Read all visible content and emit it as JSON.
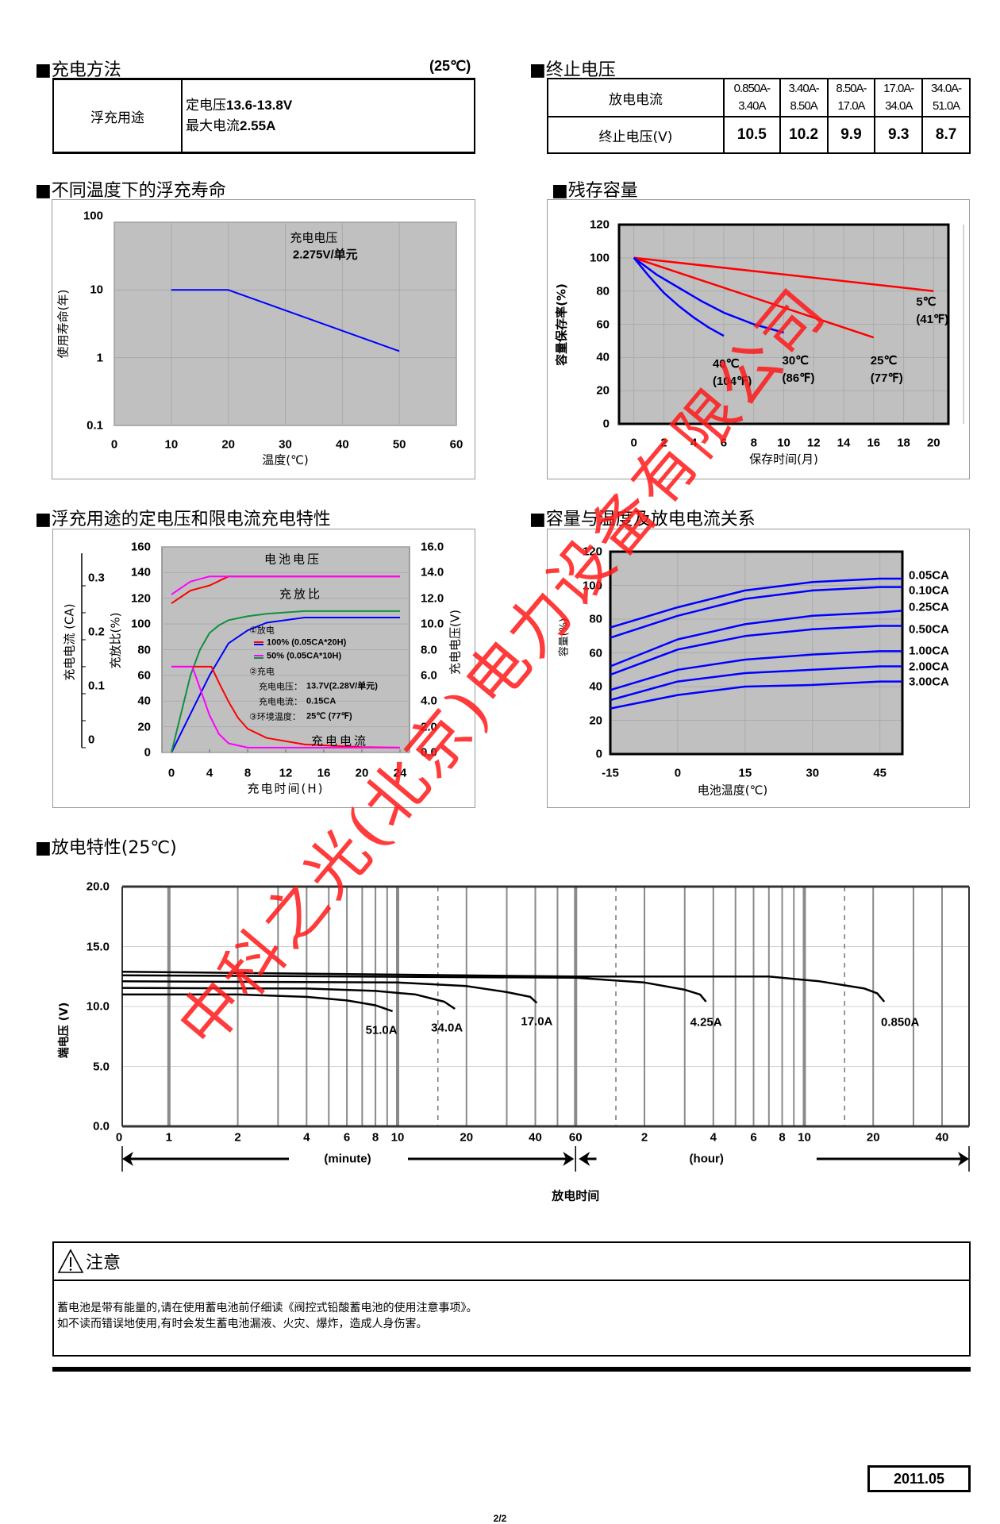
{
  "charge_method": {
    "title": "■充电方法",
    "temp": "(25℃)",
    "use": "浮充用途",
    "lines": [
      {
        "label": "定电压",
        "value": "13.6-13.8V"
      },
      {
        "label": "最大电流",
        "value": "2.55A"
      }
    ]
  },
  "end_voltage": {
    "title": "■终止电压",
    "row1_label": "放电电流",
    "currents": [
      [
        "0.850A-",
        "3.40A"
      ],
      [
        "3.40A-",
        "8.50A"
      ],
      [
        "8.50A-",
        "17.0A"
      ],
      [
        "17.0A-",
        "34.0A"
      ],
      [
        "34.0A-",
        "51.0A"
      ]
    ],
    "row2_label": "终止电压(V)",
    "voltages": [
      "10.5",
      "10.2",
      "9.9",
      "9.3",
      "8.7"
    ]
  },
  "chart_data": [
    {
      "type": "line",
      "title": "■不同温度下的浮充寿命",
      "xlabel": "温度(℃)",
      "ylabel": "使用寿命(年)",
      "xlim": [
        0,
        60
      ],
      "ylim": [
        0.1,
        100
      ],
      "yscale": "log",
      "xticks": [
        "0",
        "10",
        "20",
        "30",
        "40",
        "50",
        "60"
      ],
      "yticks": [
        "100",
        "10",
        "1",
        "0.1"
      ],
      "grid": true,
      "annotation": [
        "充电电压",
        "2.275V/单元"
      ],
      "series": [
        {
          "color": "#0000ff",
          "points": [
            [
              10,
              10
            ],
            [
              20,
              10
            ],
            [
              50,
              1.25
            ]
          ]
        }
      ]
    },
    {
      "type": "line",
      "title": "■残存容量",
      "xlabel": "保存时间(月)",
      "ylabel": "容量保存率(%)",
      "xlim": [
        0,
        22
      ],
      "ylim": [
        0,
        120
      ],
      "xticks": [
        "0",
        "2",
        "4",
        "6",
        "8",
        "10",
        "12",
        "14",
        "16",
        "18",
        "20"
      ],
      "yticks": [
        "0",
        "20",
        "40",
        "60",
        "80",
        "100",
        "120"
      ],
      "grid": true,
      "series": [
        {
          "name": "5℃",
          "name2": "(41℉)",
          "color": "#ff0000",
          "points": [
            [
              0,
              100
            ],
            [
              20,
              80
            ]
          ]
        },
        {
          "name": "25℃",
          "name2": "(77℉)",
          "color": "#ff0000",
          "points": [
            [
              0,
              100
            ],
            [
              4,
              88
            ],
            [
              8,
              76
            ],
            [
              12,
              64
            ],
            [
              16,
              52
            ]
          ]
        },
        {
          "name": "30℃",
          "name2": "(86℉)",
          "color": "#0000ff",
          "points": [
            [
              0,
              100
            ],
            [
              1.5,
              90
            ],
            [
              3,
              82
            ],
            [
              4.5,
              74
            ],
            [
              6,
              67
            ],
            [
              8,
              60
            ],
            [
              10,
              55
            ]
          ]
        },
        {
          "name": "40℃",
          "name2": "(104℉)",
          "color": "#0000ff",
          "points": [
            [
              0,
              100
            ],
            [
              1,
              89
            ],
            [
              2,
              79
            ],
            [
              3,
              71
            ],
            [
              4,
              64
            ],
            [
              5,
              58
            ],
            [
              6,
              53
            ]
          ]
        }
      ]
    },
    {
      "type": "line",
      "title": "■浮充用途的定电压和限电流充电特性",
      "xlabel": "充电时间(H)",
      "xlim": [
        -1,
        25
      ],
      "xticks": [
        "0",
        "4",
        "8",
        "12",
        "16",
        "20",
        "24"
      ],
      "y_left_label": "充放比(%)",
      "y_left_lim": [
        0,
        160
      ],
      "y_left_ticks": [
        "0",
        "20",
        "40",
        "60",
        "80",
        "100",
        "120",
        "140",
        "160"
      ],
      "y_right_label": "充电电压(V)",
      "y_right_lim": [
        0,
        16
      ],
      "y_right_ticks": [
        "0.0",
        "2.0",
        "4.0",
        "6.0",
        "8.0",
        "10.0",
        "12.0",
        "14.0",
        "16.0"
      ],
      "y_far_left_label": "充电电流 (CA)",
      "y_far_left_ticks": [
        "0",
        "0.1",
        "0.2",
        "0.3"
      ],
      "annotations": {
        "battery_voltage": "电池电压",
        "charge_ratio": "充放比",
        "charge_current": "充电电流"
      },
      "legend": {
        "discharge": "①放电",
        "d100": "100% (0.05CA*20H)",
        "d50": "50% (0.05CA*10H)",
        "charge": "②充电",
        "cv_label": "充电电压：",
        "cv_value": "13.7V(2.28V/单元)",
        "cc_label": "充电电流：",
        "cc_value": "0.15CA",
        "amb_label": "③环境温度：",
        "amb_value": "25℃ (77℉)"
      },
      "series": [
        {
          "name": "100% (0.05CA*20H)",
          "quantity": "voltage_V",
          "color": "#ff0000",
          "points": [
            [
              0,
              11.6
            ],
            [
              2,
              12.6
            ],
            [
              4,
              13.0
            ],
            [
              6,
              13.7
            ],
            [
              24,
              13.7
            ]
          ]
        },
        {
          "name": "50% (0.05CA*10H)",
          "quantity": "voltage_V",
          "color": "#ff00ff",
          "points": [
            [
              0,
              12.3
            ],
            [
              2,
              13.3
            ],
            [
              4,
              13.7
            ],
            [
              24,
              13.7
            ]
          ]
        },
        {
          "name": "100% (0.05CA*20H)",
          "quantity": "charge_ratio_pct",
          "color": "#0000ff",
          "points": [
            [
              0,
              0
            ],
            [
              2,
              30
            ],
            [
              4,
              60
            ],
            [
              6,
              85
            ],
            [
              8,
              95
            ],
            [
              10,
              101
            ],
            [
              14,
              105
            ],
            [
              24,
              105
            ]
          ]
        },
        {
          "name": "50% (0.05CA*10H)",
          "quantity": "charge_ratio_pct",
          "color": "#109040",
          "points": [
            [
              0,
              0
            ],
            [
              1,
              30
            ],
            [
              2,
              60
            ],
            [
              3,
              80
            ],
            [
              4,
              93
            ],
            [
              5,
              99
            ],
            [
              6,
              103
            ],
            [
              8,
              106
            ],
            [
              10,
              108
            ],
            [
              14,
              110
            ],
            [
              24,
              110
            ]
          ]
        },
        {
          "name": "100% (0.05CA*20H)",
          "quantity": "current_CA",
          "color": "#ff0000",
          "points": [
            [
              0,
              0.15
            ],
            [
              4.2,
              0.15
            ],
            [
              5,
              0.12
            ],
            [
              6,
              0.085
            ],
            [
              7,
              0.055
            ],
            [
              8,
              0.035
            ],
            [
              10,
              0.018
            ],
            [
              14,
              0.006
            ],
            [
              20,
              0.001
            ],
            [
              24,
              0
            ]
          ]
        },
        {
          "name": "50% (0.05CA*10H)",
          "quantity": "current_CA",
          "color": "#ff00ff",
          "points": [
            [
              0,
              0.15
            ],
            [
              2.2,
              0.15
            ],
            [
              3,
              0.11
            ],
            [
              4,
              0.06
            ],
            [
              5,
              0.025
            ],
            [
              6,
              0.008
            ],
            [
              8,
              0
            ],
            [
              24,
              0
            ]
          ]
        }
      ]
    },
    {
      "type": "line",
      "title": "■容量与温度及放电电流关系",
      "xlabel": "电池温度(℃)",
      "ylabel": "容量(%)",
      "xlim": [
        -15,
        50
      ],
      "ylim": [
        0,
        120
      ],
      "xticks": [
        "-15",
        "0",
        "15",
        "30",
        "45"
      ],
      "yticks": [
        "0",
        "20",
        "40",
        "60",
        "80",
        "100",
        "120"
      ],
      "grid": true,
      "x": [
        -15,
        0,
        15,
        30,
        45,
        50
      ],
      "series": [
        {
          "name": "0.05CA",
          "color": "#0000ff",
          "values": [
            75,
            87,
            97,
            102,
            104,
            104
          ]
        },
        {
          "name": "0.10CA",
          "color": "#0000ff",
          "values": [
            69,
            82,
            92,
            97,
            99,
            99
          ]
        },
        {
          "name": "0.25CA",
          "color": "#0000ff",
          "values": [
            52,
            68,
            77,
            82,
            84,
            85
          ]
        },
        {
          "name": "0.50CA",
          "color": "#0000ff",
          "values": [
            47,
            62,
            70,
            74,
            76,
            76
          ]
        },
        {
          "name": "1.00CA",
          "color": "#0000ff",
          "values": [
            38,
            50,
            56,
            59,
            61,
            61
          ]
        },
        {
          "name": "2.00CA",
          "color": "#0000ff",
          "values": [
            32,
            43,
            48,
            50,
            52,
            52
          ]
        },
        {
          "name": "3.00CA",
          "color": "#0000ff",
          "values": [
            27,
            35,
            40,
            41,
            43,
            43
          ]
        }
      ]
    },
    {
      "type": "line",
      "title": "■放电特性(25℃)",
      "xlabel": "放电时间",
      "ylabel": "端电压 (V)",
      "xscale": "log",
      "x_unit": "minutes",
      "xlim": [
        0.625,
        3150
      ],
      "ylim": [
        0,
        20
      ],
      "yticks": [
        "0.0",
        "5.0",
        "10.0",
        "15.0",
        "20.0"
      ],
      "xticks": [
        {
          "label": "0",
          "minutes": 0.625
        },
        {
          "label": "1",
          "minutes": 1
        },
        {
          "label": "2",
          "minutes": 2
        },
        {
          "label": "4",
          "minutes": 4
        },
        {
          "label": "6",
          "minutes": 6
        },
        {
          "label": "8",
          "minutes": 8
        },
        {
          "label": "10",
          "minutes": 10
        },
        {
          "label": "20",
          "minutes": 20
        },
        {
          "label": "40",
          "minutes": 40
        },
        {
          "label": "60",
          "minutes": 60
        },
        {
          "label": "2",
          "minutes": 120
        },
        {
          "label": "4",
          "minutes": 240
        },
        {
          "label": "6",
          "minutes": 360
        },
        {
          "label": "8",
          "minutes": 480
        },
        {
          "label": "10",
          "minutes": 600
        },
        {
          "label": "20",
          "minutes": 1200
        },
        {
          "label": "40",
          "minutes": 2400
        }
      ],
      "unit_minute": "(minute)",
      "unit_hour": "(hour)",
      "grid": true,
      "series": [
        {
          "name": "51.0A",
          "color": "#000000",
          "points": [
            [
              0.625,
              11.0
            ],
            [
              2,
              11.0
            ],
            [
              4,
              10.8
            ],
            [
              6,
              10.5
            ],
            [
              8,
              10.1
            ],
            [
              9.5,
              9.6
            ]
          ]
        },
        {
          "name": "34.0A",
          "color": "#000000",
          "points": [
            [
              0.625,
              11.55
            ],
            [
              4,
              11.5
            ],
            [
              8,
              11.3
            ],
            [
              12,
              11.0
            ],
            [
              16,
              10.4
            ],
            [
              17.8,
              9.8
            ]
          ]
        },
        {
          "name": "17.0A",
          "color": "#000000",
          "points": [
            [
              0.625,
              12.1
            ],
            [
              10,
              12.0
            ],
            [
              20,
              11.7
            ],
            [
              30,
              11.2
            ],
            [
              38,
              10.8
            ],
            [
              40.6,
              10.3
            ]
          ]
        },
        {
          "name": "4.25A",
          "color": "#000000",
          "points": [
            [
              0.625,
              12.6
            ],
            [
              60,
              12.4
            ],
            [
              120,
              12.0
            ],
            [
              180,
              11.4
            ],
            [
              210,
              11.0
            ],
            [
              223,
              10.4
            ]
          ]
        },
        {
          "name": "0.850A",
          "color": "#000000",
          "points": [
            [
              0.625,
              12.9
            ],
            [
              60,
              12.5
            ],
            [
              420,
              12.5
            ],
            [
              700,
              12.1
            ],
            [
              1100,
              11.5
            ],
            [
              1250,
              11.1
            ],
            [
              1342,
              10.4
            ]
          ]
        }
      ]
    }
  ],
  "note": {
    "icon": "warning-triangle-icon",
    "title": "注意",
    "lines": [
      "蓄电池是带有能量的,请在使用蓄电池前仔细读《阀控式铅酸蓄电池的使用注意事项》。",
      "如不读而错误地使用,有时会发生蓄电池漏液、火灾、爆炸，造成人身伤害。"
    ]
  },
  "date": "2011.05",
  "page": "2/2",
  "watermark": "中科之光(北京)电力设备有限公司",
  "colors": {
    "plot_bg": "#c0c0c0",
    "stamp": "#ff1a1a",
    "curve_blue": "#0000ff",
    "curve_red": "#ff0000"
  }
}
